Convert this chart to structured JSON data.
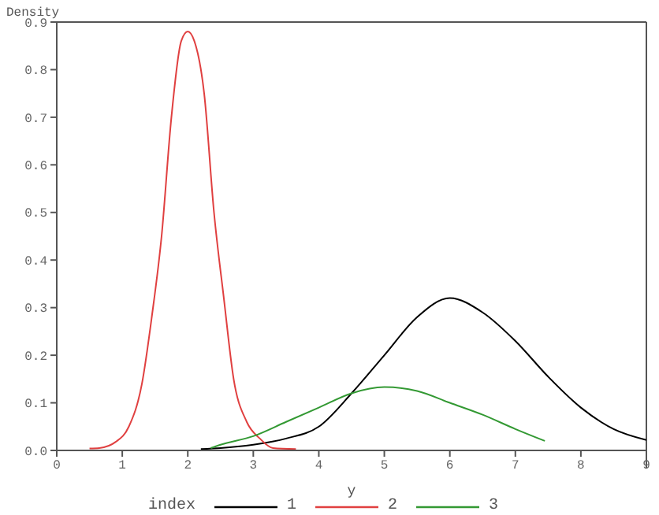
{
  "chart_data": {
    "type": "line",
    "xlabel": "y",
    "ylabel": "Density",
    "legend_title": "index",
    "legend": "bottom",
    "marker": "none",
    "line_style": "solid",
    "grid": false,
    "xlim": [
      0,
      9
    ],
    "xticks": [
      0,
      1,
      2,
      3,
      4,
      5,
      6,
      7,
      8,
      9
    ],
    "ylim": [
      0,
      0.9
    ],
    "yticks": [
      {
        "value": 0,
        "label": "0.0"
      },
      {
        "value": 0.1,
        "label": "0.1"
      },
      {
        "value": 0.2,
        "label": "0.2"
      },
      {
        "value": 0.3,
        "label": "0.3"
      },
      {
        "value": 0.4,
        "label": "0.4"
      },
      {
        "value": 0.5,
        "label": "0.5"
      },
      {
        "value": 0.6,
        "label": "0.6"
      },
      {
        "value": 0.7,
        "label": "0.7"
      },
      {
        "value": 0.8,
        "label": "0.8"
      },
      {
        "value": 0.9,
        "label": "0.9"
      }
    ],
    "series": [
      {
        "name": "1",
        "color": "#000000",
        "x": [
          2.2,
          2.5,
          3,
          3.5,
          4,
          4.5,
          5,
          5.5,
          6,
          6.5,
          7,
          7.5,
          8,
          8.5,
          9
        ],
        "values": [
          0.003,
          0.005,
          0.012,
          0.025,
          0.05,
          0.12,
          0.2,
          0.28,
          0.32,
          0.29,
          0.23,
          0.155,
          0.09,
          0.045,
          0.022
        ]
      },
      {
        "name": "2",
        "color": "#e04040",
        "x": [
          0.5,
          0.65,
          0.9,
          1.1,
          1.3,
          1.45,
          1.6,
          1.75,
          1.9,
          2,
          2.1,
          2.25,
          2.4,
          2.55,
          2.7,
          2.9,
          3.1,
          3.3,
          3.65
        ],
        "values": [
          0.004,
          0.005,
          0.018,
          0.05,
          0.14,
          0.28,
          0.45,
          0.7,
          0.86,
          0.88,
          0.86,
          0.75,
          0.5,
          0.32,
          0.15,
          0.06,
          0.025,
          0.005,
          0.003
        ]
      },
      {
        "name": "3",
        "color": "#339933",
        "x": [
          2.35,
          2.5,
          3,
          3.5,
          4,
          4.5,
          5,
          5.5,
          6,
          6.5,
          7,
          7.45
        ],
        "values": [
          0.005,
          0.012,
          0.03,
          0.06,
          0.09,
          0.12,
          0.133,
          0.125,
          0.1,
          0.075,
          0.045,
          0.02
        ]
      }
    ]
  }
}
